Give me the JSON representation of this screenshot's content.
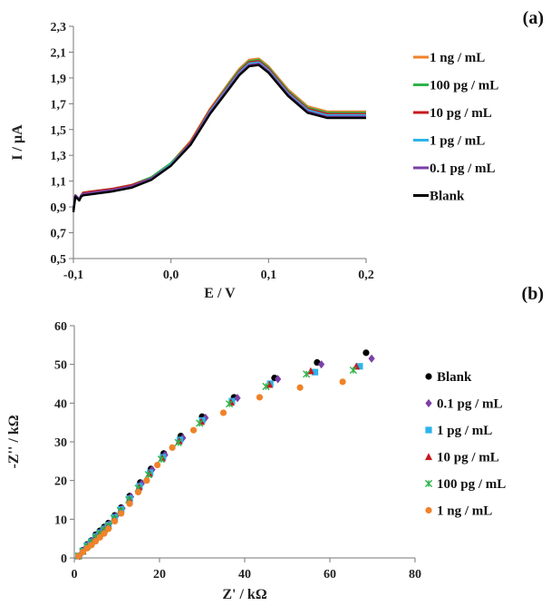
{
  "chart_data": [
    {
      "type": "line",
      "panel_label": "(a)",
      "title": "",
      "xlabel": "E / V",
      "ylabel": "I / µA",
      "xlim": [
        -0.1,
        0.2
      ],
      "ylim": [
        0.5,
        2.3
      ],
      "x_ticks": [
        -0.1,
        0.0,
        0.1,
        0.2
      ],
      "x_tick_labels": [
        "-0,1",
        "0,0",
        "0,1",
        "0,2"
      ],
      "y_ticks": [
        0.5,
        0.7,
        0.9,
        1.1,
        1.3,
        1.5,
        1.7,
        1.9,
        2.1,
        2.3
      ],
      "y_tick_labels": [
        "0,5",
        "0,7",
        "0,9",
        "1,1",
        "1,3",
        "1,5",
        "1,7",
        "1,9",
        "2,1",
        "2,3"
      ],
      "grid": false,
      "legend_position": "right",
      "x": [
        -0.1,
        -0.098,
        -0.094,
        -0.092,
        -0.09,
        -0.08,
        -0.06,
        -0.04,
        -0.02,
        0.0,
        0.02,
        0.04,
        0.06,
        0.07,
        0.08,
        0.09,
        0.1,
        0.12,
        0.14,
        0.16,
        0.18,
        0.2
      ],
      "series": [
        {
          "name": "1 ng / mL",
          "color": "#f0822a",
          "values": [
            0.88,
            0.99,
            0.96,
            0.99,
            1.01,
            1.02,
            1.04,
            1.07,
            1.13,
            1.24,
            1.41,
            1.66,
            1.87,
            1.97,
            2.04,
            2.05,
            1.99,
            1.81,
            1.68,
            1.64,
            1.64,
            1.64
          ]
        },
        {
          "name": "100 pg / mL",
          "color": "#2db34a",
          "values": [
            0.88,
            0.99,
            0.96,
            0.99,
            1.01,
            1.02,
            1.04,
            1.07,
            1.13,
            1.24,
            1.4,
            1.65,
            1.86,
            1.96,
            2.03,
            2.04,
            1.98,
            1.8,
            1.67,
            1.63,
            1.63,
            1.63
          ]
        },
        {
          "name": "10 pg / mL",
          "color": "#c8181e",
          "values": [
            0.88,
            0.99,
            0.96,
            0.99,
            1.01,
            1.02,
            1.04,
            1.07,
            1.12,
            1.23,
            1.4,
            1.65,
            1.85,
            1.95,
            2.02,
            2.03,
            1.97,
            1.79,
            1.66,
            1.62,
            1.62,
            1.62
          ]
        },
        {
          "name": "1 pg / mL",
          "color": "#2bb5ea",
          "values": [
            0.88,
            0.99,
            0.96,
            0.99,
            1.0,
            1.01,
            1.03,
            1.06,
            1.12,
            1.23,
            1.39,
            1.64,
            1.84,
            1.94,
            2.01,
            2.02,
            1.96,
            1.78,
            1.65,
            1.61,
            1.61,
            1.61
          ]
        },
        {
          "name": "0.1 pg / mL",
          "color": "#7b3fa6",
          "values": [
            0.88,
            0.99,
            0.96,
            0.99,
            1.0,
            1.01,
            1.03,
            1.06,
            1.12,
            1.22,
            1.39,
            1.63,
            1.83,
            1.93,
            2.0,
            2.01,
            1.95,
            1.77,
            1.64,
            1.6,
            1.6,
            1.6
          ]
        },
        {
          "name": "Blank",
          "color": "#000000",
          "values": [
            0.86,
            0.98,
            0.95,
            0.98,
            0.99,
            1.0,
            1.02,
            1.05,
            1.11,
            1.22,
            1.38,
            1.62,
            1.82,
            1.92,
            1.99,
            2.0,
            1.94,
            1.76,
            1.63,
            1.59,
            1.59,
            1.59
          ]
        }
      ]
    },
    {
      "type": "scatter",
      "panel_label": "(b)",
      "title": "",
      "xlabel": "Z' / kΩ",
      "ylabel": "-Z'' / kΩ",
      "xlim": [
        0,
        80
      ],
      "ylim": [
        0,
        60
      ],
      "x_ticks": [
        0,
        20,
        40,
        60,
        80
      ],
      "x_tick_labels": [
        "0",
        "20",
        "40",
        "60",
        "80"
      ],
      "y_ticks": [
        0,
        10,
        20,
        30,
        40,
        50,
        60
      ],
      "y_tick_labels": [
        "0",
        "10",
        "20",
        "30",
        "40",
        "50",
        "60"
      ],
      "grid": false,
      "legend_position": "right",
      "series": [
        {
          "name": "Blank",
          "color": "#000000",
          "marker": "circle",
          "x": [
            1,
            2,
            3,
            4,
            5,
            6,
            7,
            8,
            9.5,
            11,
            13,
            15.5,
            18,
            21,
            25,
            30,
            37.5,
            47,
            57,
            68.5
          ],
          "y": [
            0.5,
            2,
            3.5,
            4.5,
            6,
            7,
            8,
            9,
            11,
            13,
            16,
            19.5,
            23,
            27,
            31.5,
            36.5,
            41.5,
            46.5,
            50.5,
            53
          ]
        },
        {
          "name": "0.1 pg / mL",
          "color": "#7b3fa6",
          "marker": "diamond",
          "x": [
            1.2,
            2.2,
            3.2,
            4.2,
            5.2,
            6.2,
            7.2,
            8.2,
            9.8,
            11.3,
            13.3,
            15.8,
            18.3,
            21.3,
            25.5,
            30.8,
            38.3,
            47.8,
            58,
            69.8
          ],
          "y": [
            0.5,
            2,
            3.4,
            4.4,
            5.8,
            6.8,
            7.8,
            8.8,
            10.8,
            12.8,
            15.8,
            19.2,
            22.8,
            26.6,
            31,
            36.2,
            41.3,
            46.2,
            50,
            51.5
          ]
        },
        {
          "name": "1 pg / mL",
          "color": "#2bb5ea",
          "marker": "square",
          "x": [
            1,
            2,
            3,
            4,
            5,
            6,
            7,
            8,
            9.5,
            11,
            13,
            15.3,
            17.8,
            20.8,
            24.8,
            30,
            37,
            46,
            56.5,
            67
          ],
          "y": [
            0.5,
            1.8,
            3.2,
            4.2,
            5.5,
            6.5,
            7.5,
            8.5,
            10.5,
            12.5,
            15.3,
            18.5,
            22,
            26,
            30.5,
            35.5,
            40.5,
            45,
            48,
            49.5
          ]
        },
        {
          "name": "10 pg / mL",
          "color": "#c8181e",
          "marker": "triangle",
          "x": [
            1,
            2,
            3,
            4,
            5,
            6,
            7,
            8,
            9.4,
            10.9,
            12.9,
            15.2,
            17.6,
            20.6,
            24.6,
            29.8,
            36.8,
            45.8,
            55.5,
            66.2
          ],
          "y": [
            0.5,
            1.8,
            3.1,
            4.1,
            5.4,
            6.4,
            7.4,
            8.4,
            10.3,
            12.3,
            15.1,
            18.3,
            21.8,
            25.8,
            30.2,
            35.2,
            40.2,
            44.8,
            48.3,
            49.5
          ]
        },
        {
          "name": "100 pg / mL",
          "color": "#2db34a",
          "marker": "star",
          "x": [
            1,
            2,
            3,
            4,
            5,
            6,
            7,
            8,
            9.3,
            10.8,
            12.8,
            15,
            17.4,
            20.4,
            24.4,
            29.4,
            36.4,
            45,
            54.5,
            65.5
          ],
          "y": [
            0.5,
            1.7,
            3,
            4,
            5.3,
            6.3,
            7.3,
            8.3,
            10.2,
            12.2,
            15,
            18,
            21.5,
            25.5,
            29.8,
            34.8,
            39.8,
            44.3,
            47.5,
            48.5
          ]
        },
        {
          "name": "1 ng / mL",
          "color": "#f0822a",
          "marker": "circle",
          "x": [
            1,
            2,
            3,
            4,
            5,
            6,
            7,
            8,
            9.5,
            11,
            13,
            15,
            17,
            19.5,
            23,
            28,
            35,
            43.5,
            53,
            63
          ],
          "y": [
            0.5,
            1.5,
            2.5,
            3.3,
            4.3,
            5.3,
            6.3,
            7.5,
            9.5,
            11.5,
            14,
            17,
            20,
            24,
            28.5,
            33,
            37.5,
            41.5,
            44,
            45.5
          ]
        }
      ]
    }
  ]
}
